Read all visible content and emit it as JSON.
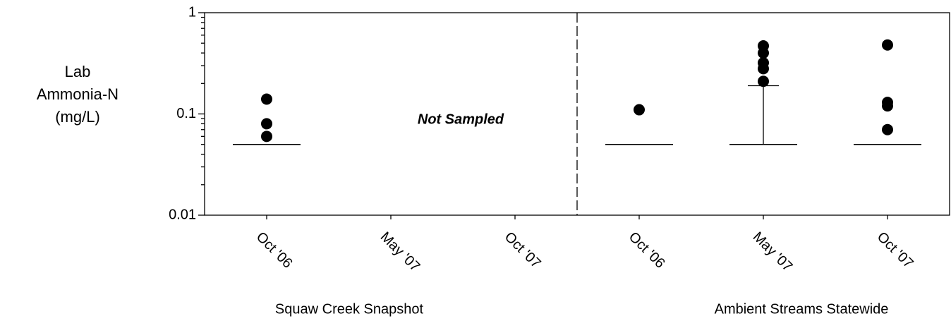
{
  "chart_data": {
    "type": "box",
    "ylabel": [
      "Lab",
      "Ammonia-N",
      "(mg/L)"
    ],
    "annotation": "Not Sampled",
    "groups": [
      "Squaw Creek Snapshot",
      "Ambient Streams Statewide"
    ],
    "categories": [
      "Oct '06",
      "May '07",
      "Oct '07",
      "Oct '06",
      "May '07",
      "Oct '07"
    ],
    "boxes": [
      {
        "q1": 0.05,
        "median": 0.05,
        "q3": 0.05,
        "whisker_low": 0.05,
        "whisker_high": 0.05,
        "outliers": [
          0.06,
          0.08,
          0.14
        ]
      },
      null,
      null,
      {
        "q1": 0.05,
        "median": 0.05,
        "q3": 0.05,
        "whisker_low": 0.05,
        "whisker_high": 0.05,
        "outliers": [
          0.11
        ]
      },
      {
        "q1": 0.05,
        "median": 0.05,
        "q3": 0.05,
        "whisker_low": 0.05,
        "whisker_high": 0.19,
        "outliers": [
          0.21,
          0.28,
          0.32,
          0.4,
          0.47
        ]
      },
      {
        "q1": 0.05,
        "median": 0.05,
        "q3": 0.05,
        "whisker_low": 0.05,
        "whisker_high": 0.05,
        "outliers": [
          0.07,
          0.12,
          0.13,
          0.48
        ]
      }
    ],
    "color": "#000000",
    "log_y": true,
    "ylim": [
      0.01,
      1
    ],
    "yticks": [
      0.01,
      0.1,
      1
    ],
    "yminorticks": [
      0.02,
      0.03,
      0.04,
      0.05,
      0.06,
      0.07,
      0.08,
      0.09,
      0.2,
      0.3,
      0.4,
      0.5,
      0.6,
      0.7,
      0.8,
      0.9
    ]
  }
}
